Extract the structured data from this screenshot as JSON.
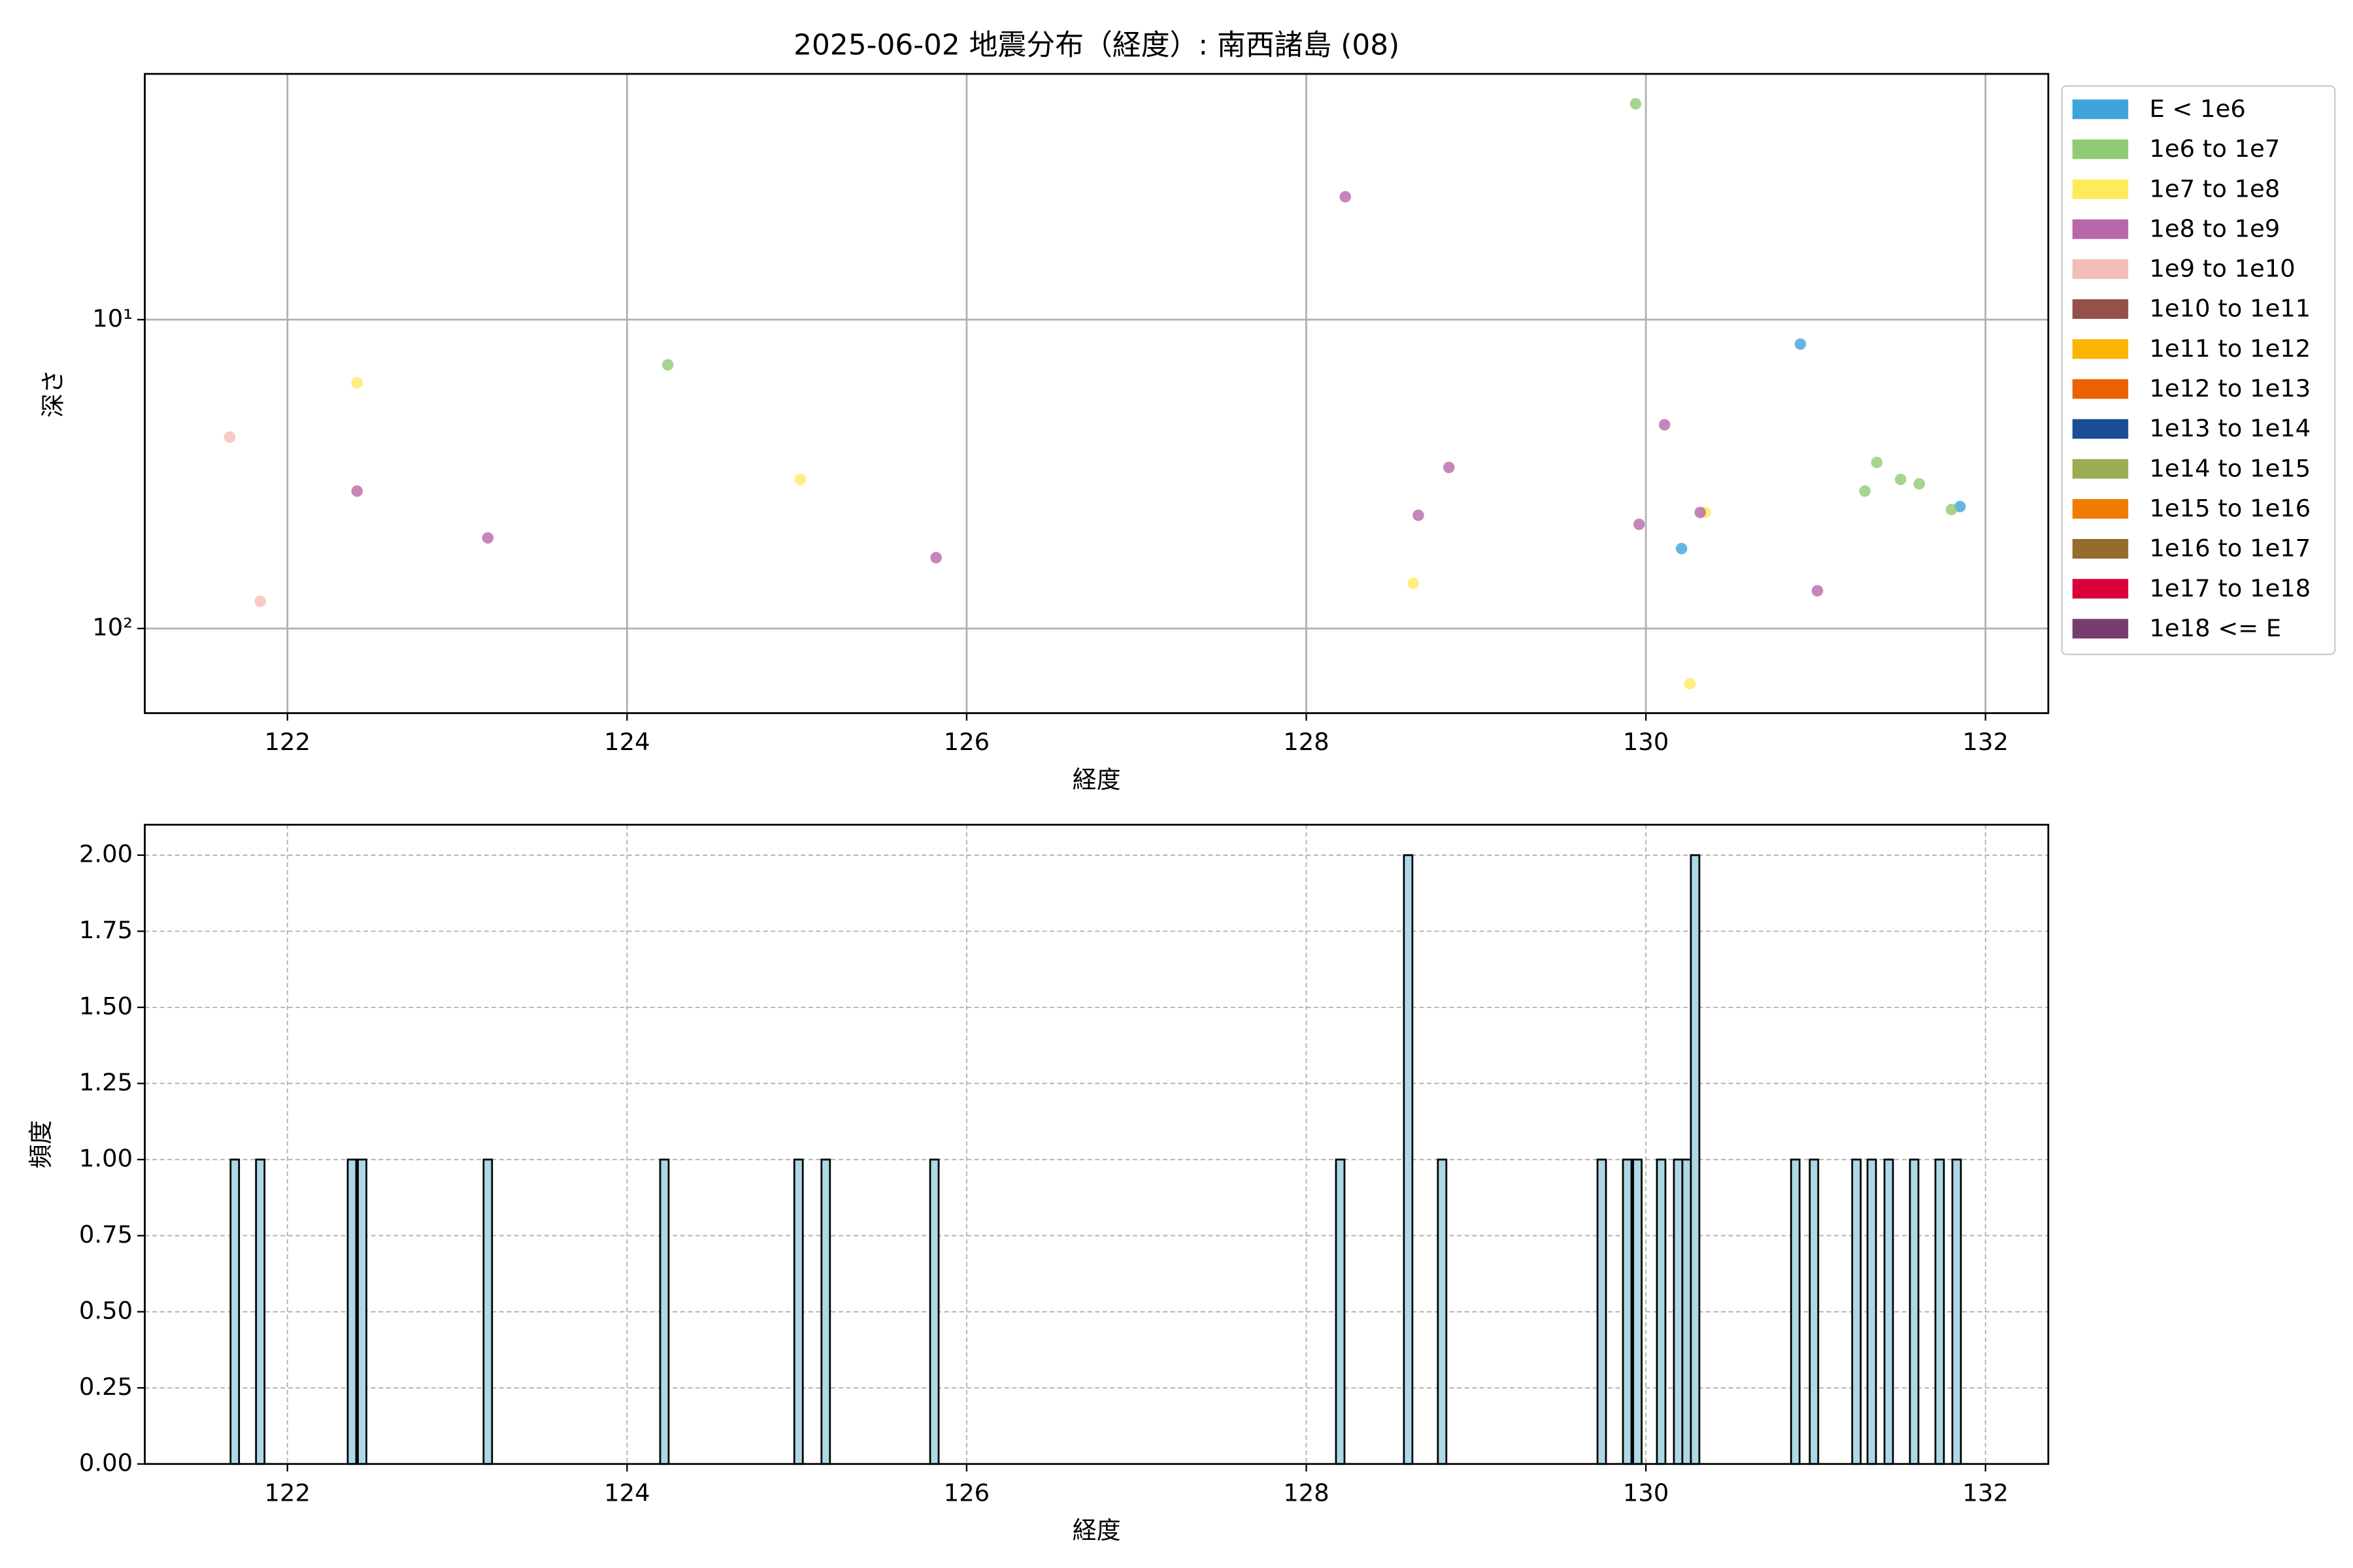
{
  "chart_data": [
    {
      "type": "scatter",
      "title": "2025-06-02 地震分布（経度）: 南西諸島 (08)",
      "xlabel": "経度",
      "ylabel": "深さ",
      "xlim": [
        121.16,
        132.37
      ],
      "xticks": [
        122,
        124,
        126,
        128,
        130,
        132
      ],
      "ylim": [
        188,
        1.6
      ],
      "yscale": "log",
      "yticks": [
        {
          "value": 10,
          "label": "10¹"
        },
        {
          "value": 100,
          "label": "10²"
        }
      ],
      "grid": true,
      "legend": "outside upper right",
      "series": [
        {
          "name": "E < 1e6",
          "color": "#3fa3dc",
          "x": [
            130.21,
            130.91,
            131.85
          ],
          "values": [
            55.1,
            12.0,
            40.3
          ]
        },
        {
          "name": "1e6 to 1e7",
          "color": "#8fcb74",
          "x": [
            124.24,
            129.94,
            131.29,
            131.36,
            131.5,
            131.61,
            131.8
          ],
          "values": [
            14.0,
            2.0,
            35.9,
            29.0,
            32.9,
            34.0,
            41.2
          ]
        },
        {
          "name": "1e7 to 1e8",
          "color": "#fdeb5c",
          "x": [
            122.41,
            125.02,
            128.63,
            130.26,
            130.35
          ],
          "values": [
            16.0,
            32.9,
            71.4,
            151,
            42.1
          ]
        },
        {
          "name": "1e8 to 1e9",
          "color": "#b868a8",
          "x": [
            122.41,
            123.18,
            125.82,
            128.23,
            128.66,
            128.84,
            129.96,
            130.11,
            130.32,
            131.01
          ],
          "values": [
            35.9,
            50.9,
            59.0,
            4.0,
            43.0,
            30.1,
            46.0,
            21.9,
            42.1,
            75.5
          ]
        },
        {
          "name": "1e9 to 1e10",
          "color": "#f5bdb7",
          "x": [
            121.66,
            121.84
          ],
          "values": [
            24.0,
            81.7
          ]
        },
        {
          "name": "1e10 to 1e11",
          "color": "#955049",
          "x": [],
          "values": []
        },
        {
          "name": "1e11 to 1e12",
          "color": "#fbb400",
          "x": [],
          "values": []
        },
        {
          "name": "1e12 to 1e13",
          "color": "#ec6100",
          "x": [],
          "values": []
        },
        {
          "name": "1e13 to 1e14",
          "color": "#1a4d94",
          "x": [],
          "values": []
        },
        {
          "name": "1e14 to 1e15",
          "color": "#9bad52",
          "x": [],
          "values": []
        },
        {
          "name": "1e15 to 1e16",
          "color": "#ef7b00",
          "x": [],
          "values": []
        },
        {
          "name": "1e16 to 1e17",
          "color": "#946c2b",
          "x": [],
          "values": []
        },
        {
          "name": "1e17 to 1e18",
          "color": "#d9003a",
          "x": [],
          "values": []
        },
        {
          "name": "1e18 <= E",
          "color": "#763d6e",
          "x": [],
          "values": []
        }
      ]
    },
    {
      "type": "histogram",
      "xlabel": "経度",
      "ylabel": "頻度",
      "color": "#add8e6",
      "xlim": [
        121.16,
        132.37
      ],
      "xticks": [
        122,
        124,
        126,
        128,
        130,
        132
      ],
      "ylim": [
        0,
        2.1
      ],
      "yticks": [
        {
          "value": 0,
          "label": "0.00"
        },
        {
          "value": 0.25,
          "label": "0.25"
        },
        {
          "value": 0.5,
          "label": "0.50"
        },
        {
          "value": 0.75,
          "label": "0.75"
        },
        {
          "value": 1,
          "label": "1.00"
        },
        {
          "value": 1.25,
          "label": "1.25"
        },
        {
          "value": 1.5,
          "label": "1.50"
        },
        {
          "value": 1.75,
          "label": "1.75"
        },
        {
          "value": 2,
          "label": "2.00"
        }
      ],
      "grid": "dashed",
      "bins": [
        121.665,
        121.715,
        121.815,
        121.865,
        122.355,
        122.405,
        122.415,
        122.465,
        123.155,
        123.205,
        124.195,
        124.245,
        124.985,
        125.035,
        125.145,
        125.195,
        125.785,
        125.835,
        128.175,
        128.225,
        128.575,
        128.625,
        128.775,
        128.825,
        129.715,
        129.765,
        129.865,
        129.915,
        129.925,
        129.975,
        130.065,
        130.115,
        130.165,
        130.215,
        130.265,
        130.315,
        130.855,
        130.905,
        130.965,
        131.015,
        131.215,
        131.265,
        131.305,
        131.355,
        131.405,
        131.455,
        131.555,
        131.605,
        131.705,
        131.755,
        131.805,
        131.855
      ],
      "values": [
        1,
        0,
        1,
        0,
        1,
        0,
        1,
        0,
        1,
        0,
        1,
        0,
        1,
        0,
        1,
        0,
        1,
        0,
        1,
        0,
        2,
        0,
        1,
        0,
        1,
        0,
        1,
        0,
        1,
        0,
        1,
        0,
        1,
        1,
        2,
        0,
        1,
        0,
        1,
        0,
        1,
        0,
        1,
        0,
        1,
        0,
        1,
        0,
        1,
        0,
        1
      ]
    }
  ]
}
